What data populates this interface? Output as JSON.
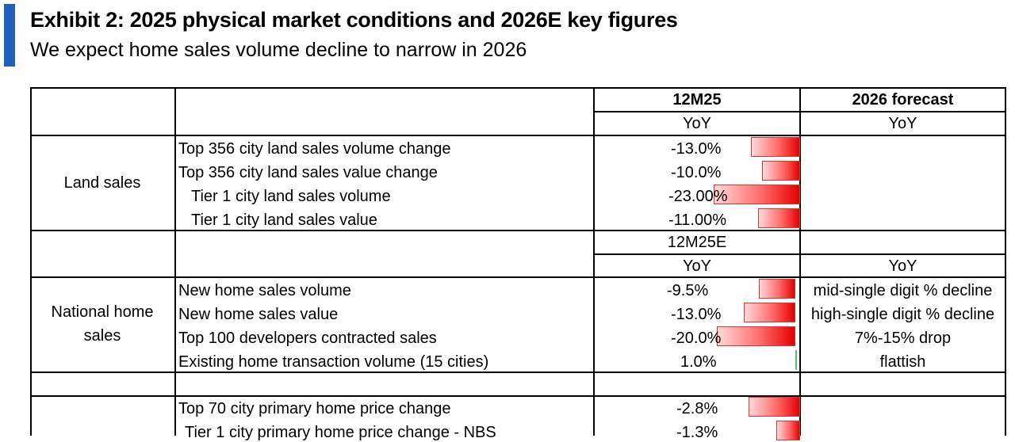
{
  "header": {
    "title": "Exhibit 2: 2025 physical market conditions and 2026E key figures",
    "subtitle": "We expect home sales volume decline to narrow in 2026"
  },
  "table": {
    "col_12m25": "12M25",
    "col_2026": "2026 forecast",
    "yoy": "YoY",
    "col_12m25e": "12M25E",
    "land": {
      "group": "Land sales",
      "rows": [
        {
          "label": "Top 356 city land sales volume change",
          "value": "-13.0%",
          "num": -13.0
        },
        {
          "label": "Top 356 city land sales value change",
          "value": "-10.0%",
          "num": -10.0
        },
        {
          "label": "Tier 1 city land sales volume",
          "value": "-23.00%",
          "num": -23.0
        },
        {
          "label": "Tier 1 city land sales value",
          "value": "-11.00%",
          "num": -11.0
        }
      ]
    },
    "national": {
      "group_line1": "National home",
      "group_line2": "sales",
      "rows": [
        {
          "label": "New home sales volume",
          "value": "-9.5%",
          "num": -9.5,
          "forecast": "mid-single digit % decline"
        },
        {
          "label": "New home sales value",
          "value": "-13.0%",
          "num": -13.0,
          "forecast": "high-single digit % decline"
        },
        {
          "label": "Top 100 developers contracted sales",
          "value": "-20.0%",
          "num": -20.0,
          "forecast": "7%-15% drop"
        },
        {
          "label": "Existing home transaction volume (15 cities)",
          "value": "1.0%",
          "num": 1.0,
          "forecast": "flattish"
        }
      ]
    },
    "prices": {
      "rows": [
        {
          "label": "Top 70 city primary home price change",
          "value": "-2.8%",
          "num": -2.8
        },
        {
          "label": "Tier 1 city primary home price change - NBS",
          "value": "-1.3%",
          "num": -1.3
        }
      ]
    }
  }
}
